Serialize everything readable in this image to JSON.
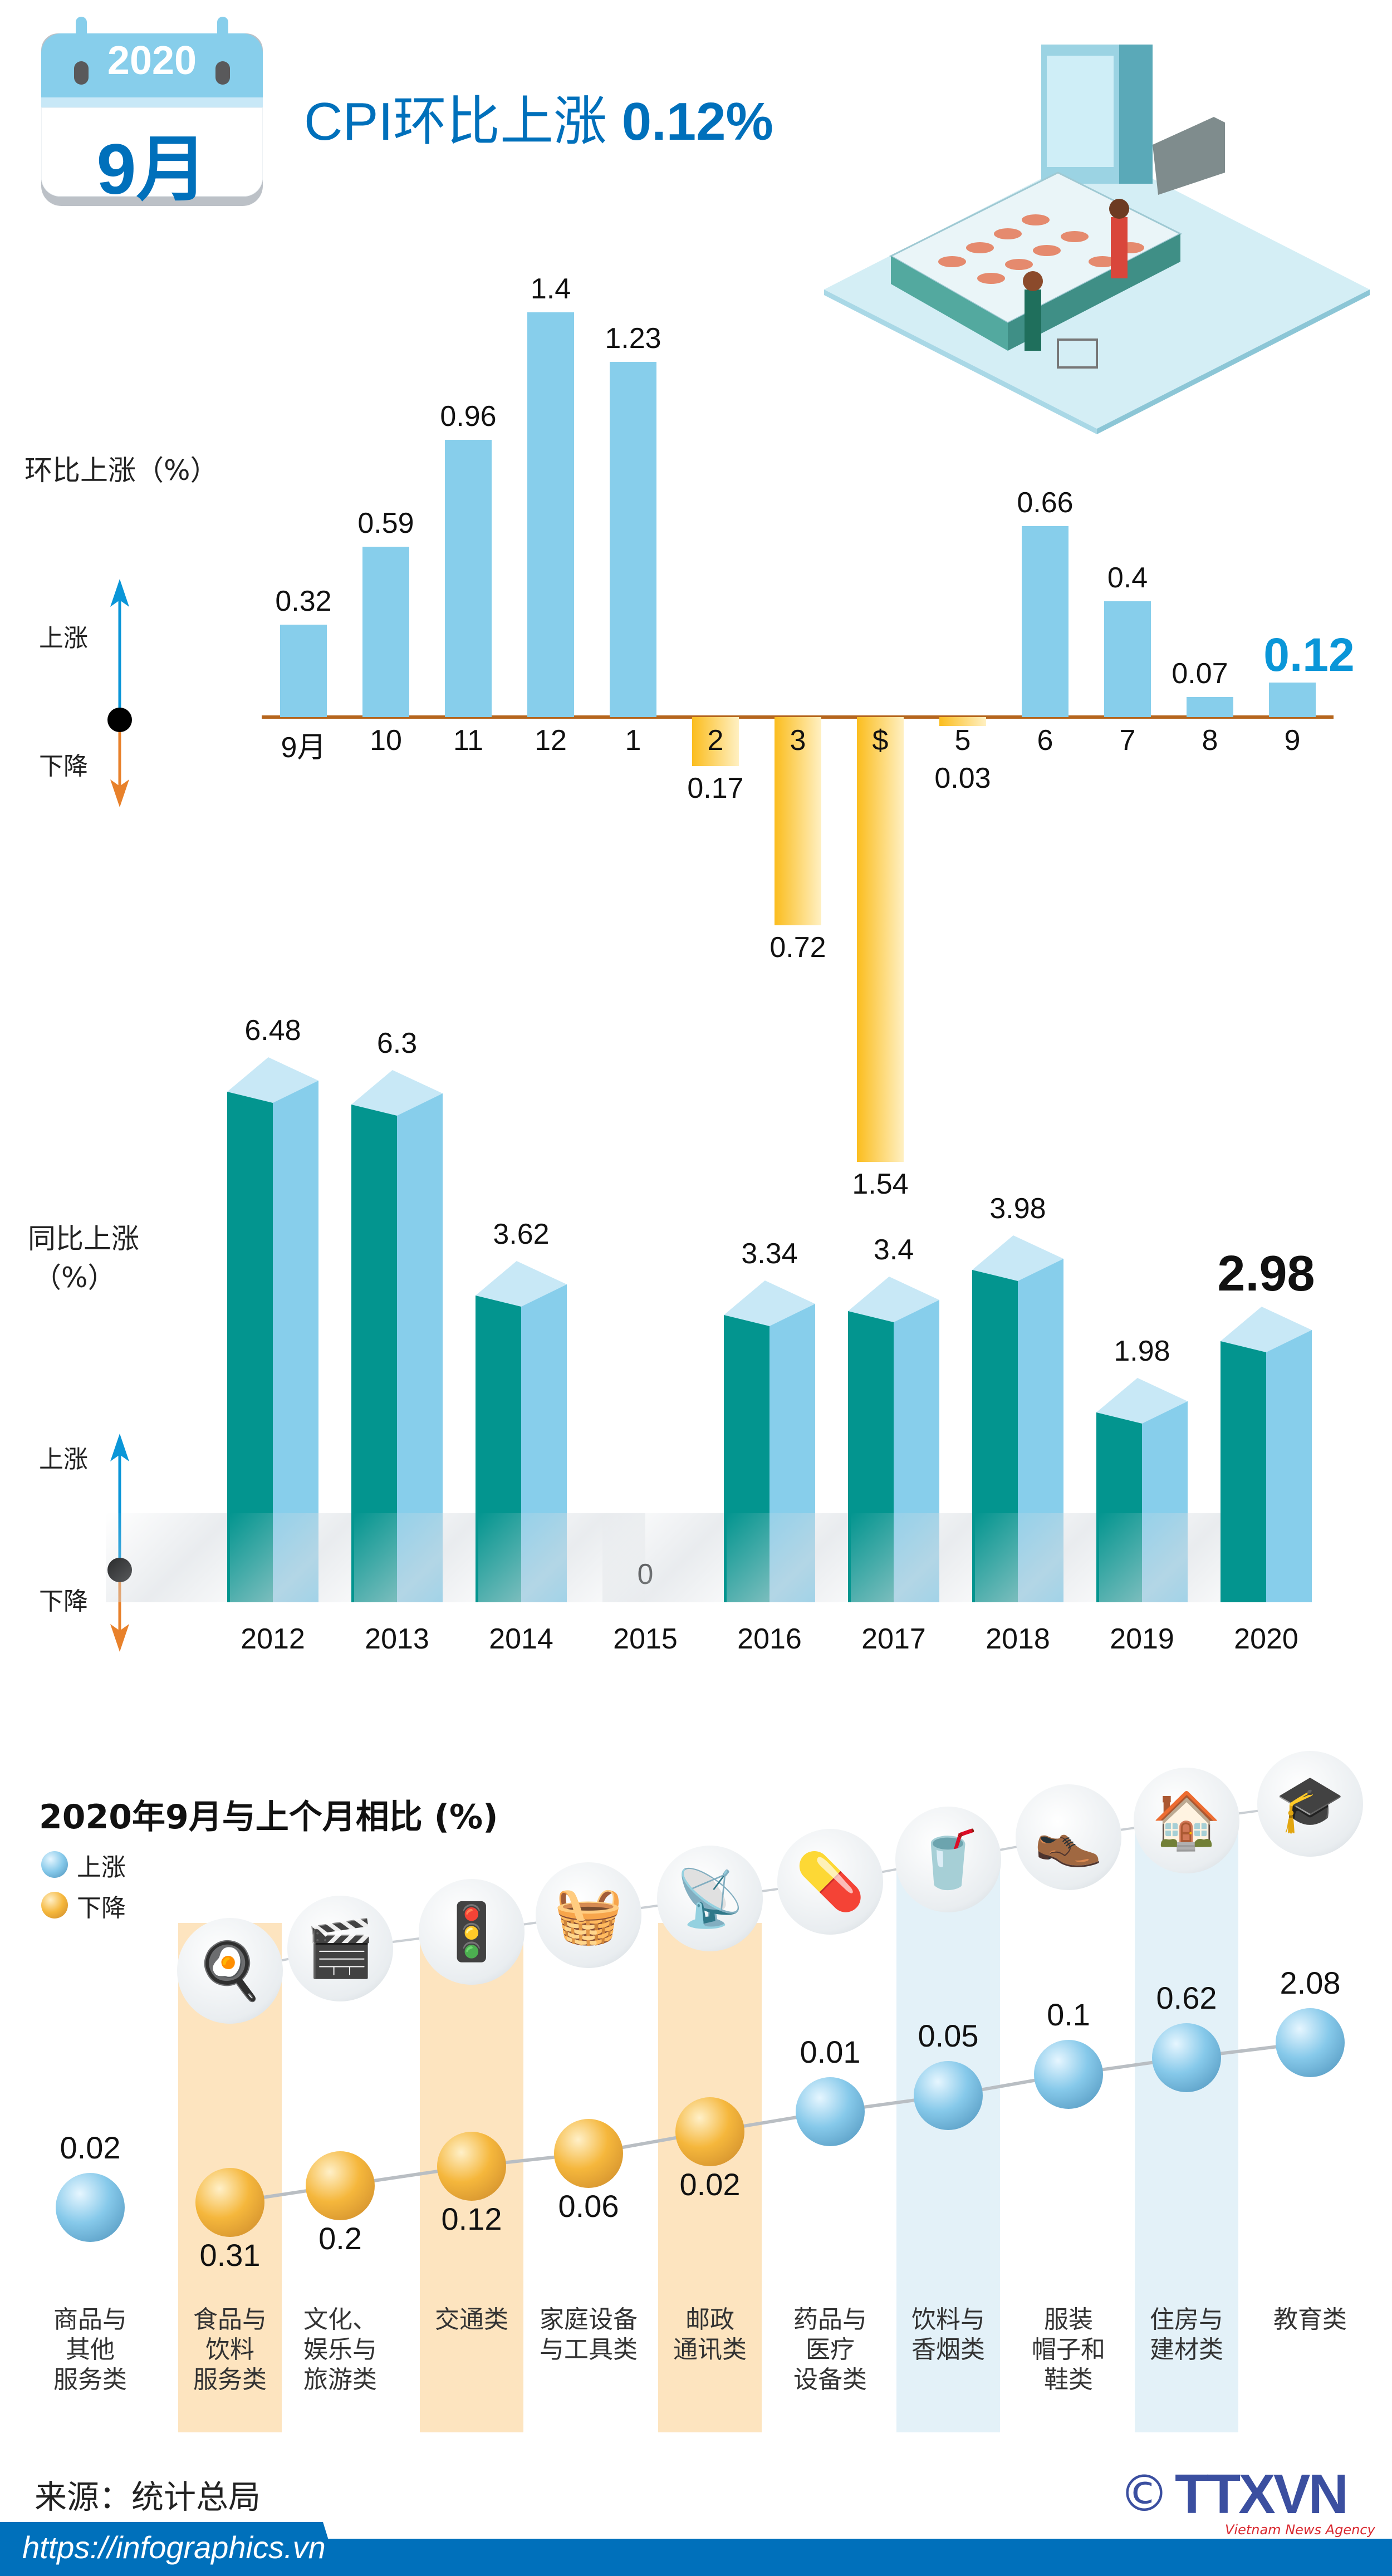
{
  "header": {
    "calendar_year": "2020",
    "calendar_month": "9月",
    "title_prefix": "CPI环比上涨 ",
    "title_value": "0.12",
    "title_unit": "%"
  },
  "colors": {
    "brand_blue": "#0070bb",
    "rise_blue": "#87ceeb",
    "fall_orange": "#fbbf24",
    "teal": "#03958f",
    "axis": "#b5651d"
  },
  "legend": {
    "up": "上涨",
    "down": "下降"
  },
  "chart_data": [
    {
      "type": "bar",
      "ylabel": "环比上涨（%）",
      "categories": [
        "9月",
        "10",
        "11",
        "12",
        "1",
        "2",
        "3",
        "$",
        "5",
        "6",
        "7",
        "8",
        "9"
      ],
      "values": [
        0.32,
        0.59,
        0.96,
        1.4,
        1.23,
        -0.17,
        -0.72,
        -1.54,
        -0.03,
        0.66,
        0.4,
        0.07,
        0.12
      ],
      "data_labels": [
        "0.32",
        "0.59",
        "0.96",
        "1.4",
        "1.23",
        "0.17",
        "0.72",
        "1.54",
        "0.03",
        "0.66",
        "0.4",
        "0.07",
        "0.12"
      ],
      "highlight_index": 12
    },
    {
      "type": "bar",
      "ylabel": "同比上涨",
      "ylabel_unit": "（%）",
      "categories": [
        "2012",
        "2013",
        "2014",
        "2015",
        "2016",
        "2017",
        "2018",
        "2019",
        "2020"
      ],
      "values": [
        6.48,
        6.3,
        3.62,
        0,
        3.34,
        3.4,
        3.98,
        1.98,
        2.98
      ],
      "data_labels": [
        "6.48",
        "6.3",
        "3.62",
        "0",
        "3.34",
        "3.4",
        "3.98",
        "1.98",
        "2.98"
      ],
      "highlight_index": 8
    }
  ],
  "comparison": {
    "title": "2020年9月与上个月相比 (%)",
    "legend_up": "上涨",
    "legend_down": "下降",
    "items": [
      {
        "label_lines": [
          "商品与",
          "其他",
          "服务类"
        ],
        "value": "0.02",
        "direction": "up",
        "icon": "none",
        "band": "none"
      },
      {
        "label_lines": [
          "食品与",
          "饮料",
          "服务类"
        ],
        "value": "0.31",
        "direction": "down",
        "icon": "food-plate-icon",
        "band": "orange"
      },
      {
        "label_lines": [
          "文化、",
          "娱乐与",
          "旅游类"
        ],
        "value": "0.2",
        "direction": "down",
        "icon": "clapperboard-icon",
        "band": "none"
      },
      {
        "label_lines": [
          "交通类"
        ],
        "value": "0.12",
        "direction": "down",
        "icon": "traffic-light-icon",
        "band": "orange"
      },
      {
        "label_lines": [
          "家庭设备",
          "与工具类"
        ],
        "value": "0.06",
        "direction": "down",
        "icon": "washing-machine-icon",
        "band": "none"
      },
      {
        "label_lines": [
          "邮政",
          "通讯类"
        ],
        "value": "0.02",
        "direction": "down",
        "icon": "antenna-tower-icon",
        "band": "orange"
      },
      {
        "label_lines": [
          "药品与",
          "医疗",
          "设备类"
        ],
        "value": "0.01",
        "direction": "up",
        "icon": "pill-icon",
        "band": "none"
      },
      {
        "label_lines": [
          "饮料与",
          "香烟类"
        ],
        "value": "0.05",
        "direction": "up",
        "icon": "drink-cigarette-icon",
        "band": "blue"
      },
      {
        "label_lines": [
          "服装",
          "帽子和",
          "鞋类"
        ],
        "value": "0.1",
        "direction": "up",
        "icon": "shirt-shoes-icon",
        "band": "none"
      },
      {
        "label_lines": [
          "住房与",
          "建材类"
        ],
        "value": "0.62",
        "direction": "up",
        "icon": "house-icon",
        "band": "blue"
      },
      {
        "label_lines": [
          "教育类"
        ],
        "value": "2.08",
        "direction": "up",
        "icon": "graduation-cap-icon",
        "band": "none"
      }
    ]
  },
  "footer": {
    "source": "来源：统计总局",
    "url": "https://infographics.vn",
    "logo_text": "TTXVN",
    "logo_subtext": "Vietnam News Agency",
    "copyright": "©"
  }
}
